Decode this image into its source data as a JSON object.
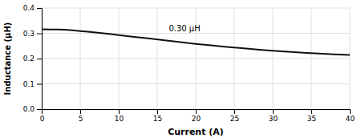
{
  "chart_data": {
    "type": "line",
    "x": [
      0,
      1,
      2,
      3,
      4,
      5,
      6,
      7,
      8,
      9,
      10,
      12,
      14,
      16,
      18,
      20,
      22,
      24,
      26,
      28,
      30,
      32,
      34,
      36,
      38,
      40
    ],
    "values": [
      0.316,
      0.315,
      0.315,
      0.314,
      0.312,
      0.309,
      0.306,
      0.303,
      0.3,
      0.297,
      0.293,
      0.286,
      0.279,
      0.272,
      0.265,
      0.258,
      0.252,
      0.246,
      0.241,
      0.236,
      0.231,
      0.227,
      0.223,
      0.22,
      0.217,
      0.214
    ],
    "color": "#111111",
    "xlabel": "Current (A)",
    "ylabel": "Inductance (μH)",
    "xlim": [
      0,
      40
    ],
    "ylim": [
      0,
      0.4
    ],
    "xticks": [
      0,
      5,
      10,
      15,
      20,
      25,
      30,
      35,
      40
    ],
    "yticks": [
      {
        "value": 0,
        "label": "0.0"
      },
      0.1,
      0.2,
      0.3,
      0.4
    ],
    "grid": true,
    "annotations": [
      {
        "text": "0.30 μH",
        "x": 16.5,
        "y": 0.308
      }
    ]
  }
}
